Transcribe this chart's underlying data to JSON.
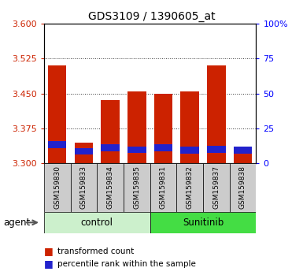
{
  "title": "GDS3109 / 1390605_at",
  "samples": [
    "GSM159830",
    "GSM159833",
    "GSM159834",
    "GSM159835",
    "GSM159831",
    "GSM159832",
    "GSM159837",
    "GSM159838"
  ],
  "red_top": [
    3.51,
    3.345,
    3.435,
    3.455,
    3.45,
    3.455,
    3.51,
    3.325
  ],
  "red_bottom": [
    3.3,
    3.3,
    3.3,
    3.3,
    3.3,
    3.3,
    3.3,
    3.3
  ],
  "blue_top": [
    3.347,
    3.332,
    3.34,
    3.336,
    3.34,
    3.335,
    3.338,
    3.336
  ],
  "blue_bottom": [
    3.332,
    3.318,
    3.326,
    3.322,
    3.326,
    3.32,
    3.323,
    3.32
  ],
  "ymin": 3.3,
  "ymax": 3.6,
  "yticks": [
    3.3,
    3.375,
    3.45,
    3.525,
    3.6
  ],
  "right_yticks_vals": [
    0,
    25,
    50,
    75,
    100
  ],
  "right_yticks_labels": [
    "0",
    "25",
    "50",
    "75",
    "100%"
  ],
  "bar_color_red": "#cc2200",
  "bar_color_blue": "#2222cc",
  "bar_width": 0.7,
  "grid_color": "#333333",
  "tick_bg": "#cccccc",
  "control_color": "#ccf0cc",
  "sunitinib_color": "#44dd44",
  "n_control": 4,
  "n_sunitinib": 4
}
